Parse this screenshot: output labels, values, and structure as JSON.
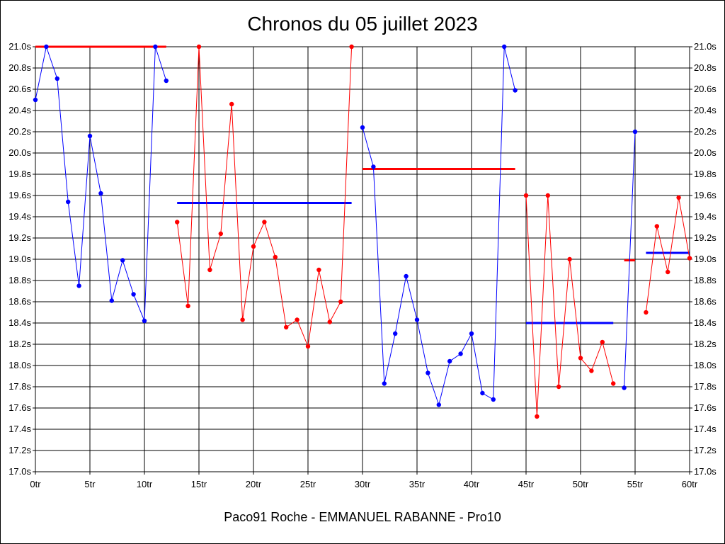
{
  "chart_data": {
    "type": "line",
    "title": "Chronos du 05 juillet 2023",
    "caption": "Paco91 Roche - EMMANUEL RABANNE - Pro10",
    "xlabel": "",
    "ylabel": "",
    "xlim": [
      0,
      60
    ],
    "ylim": [
      17.0,
      21.0
    ],
    "x_ticks": [
      "0tr",
      "5tr",
      "10tr",
      "15tr",
      "20tr",
      "25tr",
      "30tr",
      "35tr",
      "40tr",
      "45tr",
      "50tr",
      "55tr",
      "60tr"
    ],
    "y_ticks": [
      "17.0s",
      "17.2s",
      "17.4s",
      "17.6s",
      "17.8s",
      "18.0s",
      "18.2s",
      "18.4s",
      "18.6s",
      "18.8s",
      "19.0s",
      "19.2s",
      "19.4s",
      "19.6s",
      "19.8s",
      "20.0s",
      "20.2s",
      "20.4s",
      "20.6s",
      "20.8s",
      "21.0s"
    ],
    "grid": true,
    "colors": {
      "blue": "#0000ff",
      "red": "#ff0000"
    },
    "series": [
      {
        "color": "blue",
        "x": [
          0,
          1,
          2,
          3,
          4,
          5,
          6,
          7,
          8,
          9,
          10,
          11,
          12
        ],
        "values": [
          20.5,
          21.0,
          20.7,
          19.54,
          18.75,
          20.16,
          19.62,
          18.61,
          18.99,
          18.67,
          18.42,
          21.0,
          20.68
        ]
      },
      {
        "color": "red",
        "x": [
          13,
          14,
          15,
          16,
          17,
          18,
          19,
          20,
          21,
          22,
          23,
          24,
          25,
          26,
          27,
          28,
          29
        ],
        "values": [
          19.35,
          18.56,
          21.0,
          18.9,
          19.24,
          20.46,
          18.43,
          19.12,
          19.35,
          19.02,
          18.36,
          18.43,
          18.18,
          18.9,
          18.41,
          18.6,
          21.0
        ]
      },
      {
        "color": "blue",
        "x": [
          30,
          31,
          32,
          33,
          34,
          35,
          36,
          37,
          38,
          39,
          40,
          41,
          42,
          43,
          44
        ],
        "values": [
          20.24,
          19.87,
          17.83,
          18.3,
          18.84,
          18.43,
          17.93,
          17.63,
          18.04,
          18.11,
          18.3,
          17.74,
          17.68,
          21.0,
          20.59
        ]
      },
      {
        "color": "red",
        "x": [
          45,
          46,
          47,
          48,
          49,
          50,
          51,
          52,
          53
        ],
        "values": [
          19.6,
          17.52,
          19.6,
          17.8,
          19.0,
          18.07,
          17.95,
          18.22,
          17.83
        ]
      },
      {
        "color": "blue",
        "x": [
          54,
          55
        ],
        "values": [
          17.79,
          20.2
        ]
      },
      {
        "color": "red",
        "x": [
          56,
          57,
          58,
          59,
          60
        ],
        "values": [
          18.5,
          19.31,
          18.88,
          19.58,
          19.01
        ]
      }
    ],
    "averages": [
      {
        "color": "red",
        "x_start": 0,
        "x_end": 12,
        "value": 21.0
      },
      {
        "color": "blue",
        "x_start": 13,
        "x_end": 29,
        "value": 19.53
      },
      {
        "color": "red",
        "x_start": 30,
        "x_end": 44,
        "value": 19.85
      },
      {
        "color": "blue",
        "x_start": 45,
        "x_end": 53,
        "value": 18.4
      },
      {
        "color": "red",
        "x_start": 54,
        "x_end": 55,
        "value": 18.99
      },
      {
        "color": "blue",
        "x_start": 56,
        "x_end": 60,
        "value": 19.06
      }
    ]
  }
}
